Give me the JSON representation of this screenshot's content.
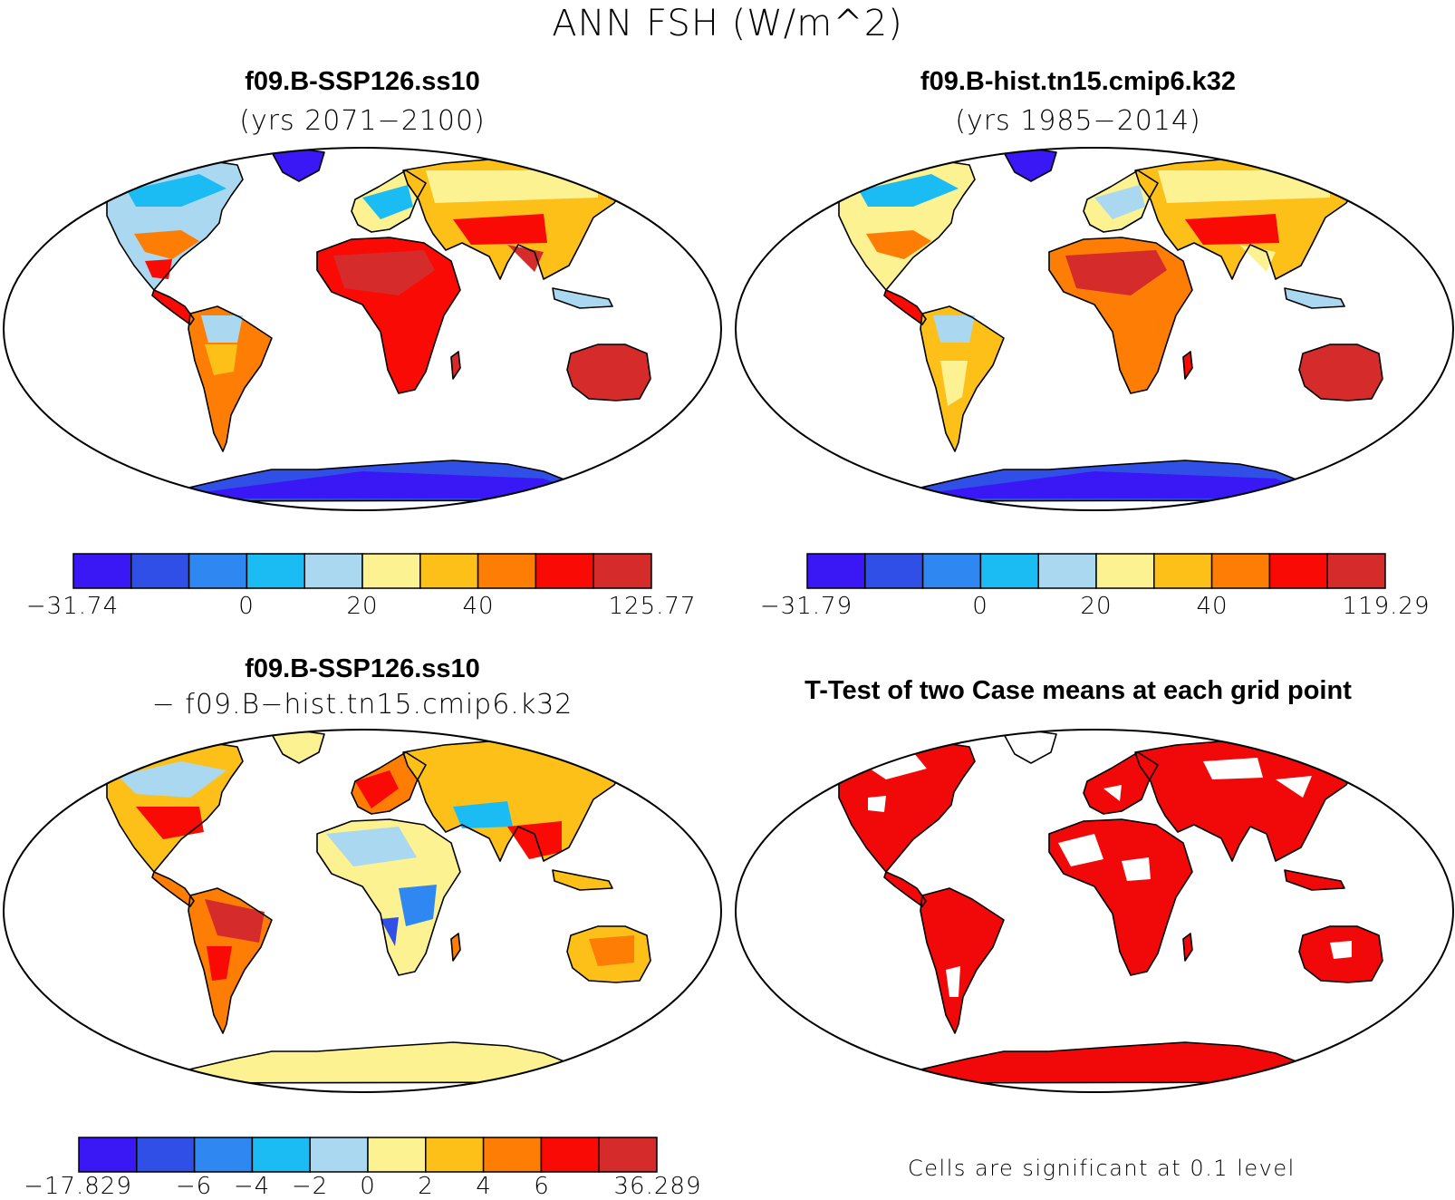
{
  "title": "ANN FSH (W/m^2)",
  "palette": [
    "#3a17f5",
    "#2f4fe6",
    "#2f87f2",
    "#1bbcf4",
    "#a9d8f0",
    "#fdf291",
    "#fcc018",
    "#fd7d05",
    "#f90a05",
    "#d62b2b"
  ],
  "significance_color": "#f10808",
  "panels": {
    "case": {
      "title": "f09.B-SSP126.ss10",
      "subtitle": "(yrs 2071−2100)",
      "colorbar_labels": [
        "−31.74",
        "0",
        "20",
        "40",
        "125.77"
      ]
    },
    "control": {
      "title": "f09.B-hist.tn15.cmip6.k32",
      "subtitle": "(yrs 1985−2014)",
      "colorbar_labels": [
        "−31.79",
        "0",
        "20",
        "40",
        "119.29"
      ]
    },
    "difference": {
      "title": "f09.B-SSP126.ss10",
      "subtitle": "− f09.B−hist.tn15.cmip6.k32",
      "colorbar_labels": [
        "−17.829",
        "−6",
        "−4",
        "−2",
        "0",
        "2",
        "4",
        "6",
        "36.289"
      ]
    },
    "ttest": {
      "title": "T-Test of two Case means at each grid point",
      "note": "Cells are significant at 0.1 level"
    }
  }
}
